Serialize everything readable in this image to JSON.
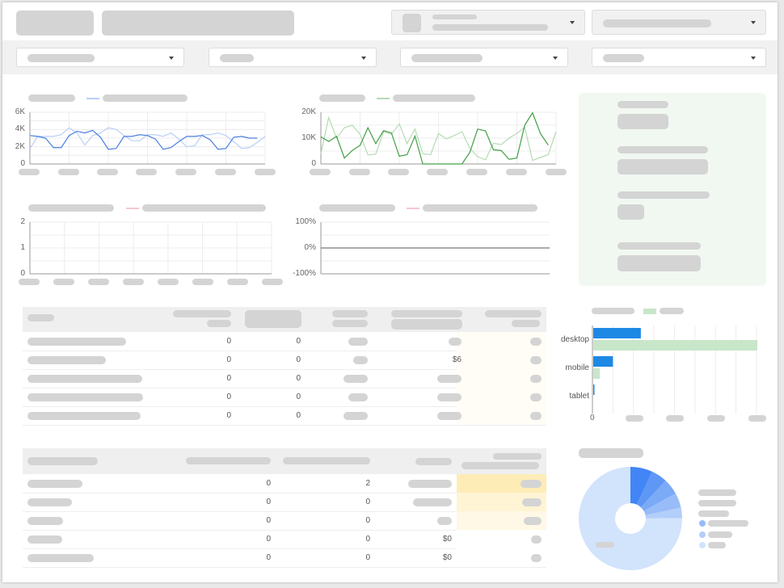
{
  "colors": {
    "blue_dark": "#4a7fe0",
    "blue_light": "#b9cff8",
    "green_dark": "#43a047",
    "green_light": "#b5dbb5",
    "pink": "#f6c7cf",
    "bar_blue": "#1e88e5",
    "bar_green": "#c8e6c9",
    "kpi_bg": "#f1f8f1",
    "heat": [
      "#feecb7",
      "#fff4d4",
      "#fff8e6"
    ]
  },
  "icons": {
    "dropdown": "chevron-down-icon"
  },
  "charts": [
    {
      "type": "line",
      "yticks": [
        "6K",
        "4K",
        "2K",
        "0"
      ],
      "ylim": [
        0,
        6000
      ],
      "series": [
        {
          "color": "blue_light",
          "values": [
            1800,
            3200,
            3200,
            3200,
            3400,
            4200,
            3600,
            2200,
            3300,
            3600,
            4200,
            4000,
            3300,
            2700,
            2700,
            3400,
            3400,
            3200,
            3600,
            2900,
            2000,
            2100,
            3400,
            3400,
            3600,
            3300,
            2600,
            1800,
            1900,
            2500,
            3200
          ]
        },
        {
          "color": "blue_dark",
          "values": [
            3300,
            3200,
            3000,
            1900,
            1900,
            3300,
            3800,
            3600,
            3900,
            3100,
            1700,
            1800,
            3200,
            3200,
            3400,
            3300,
            2900,
            1700,
            1900,
            2600,
            3200,
            3200,
            3300,
            2800,
            1700,
            1800,
            3100,
            3200,
            3000,
            3000
          ]
        }
      ]
    },
    {
      "type": "line",
      "yticks": [
        "20K",
        "10K",
        "0"
      ],
      "ylim": [
        0,
        20000
      ],
      "series": [
        {
          "color": "green_light",
          "values": [
            4000,
            18000,
            10000,
            14000,
            15000,
            11500,
            3500,
            3800,
            12500,
            11500,
            15500,
            7900,
            13500,
            4000,
            3600,
            11800,
            9700,
            11000,
            12500,
            6000,
            2800,
            1600,
            8000,
            7500,
            10000,
            11800,
            14200,
            1400,
            2500,
            3600,
            12500
          ]
        },
        {
          "color": "green_dark",
          "values": [
            10500,
            8700,
            10700,
            2300,
            5200,
            7200,
            14000,
            7900,
            12900,
            12000,
            3000,
            3600,
            10800,
            0,
            0,
            0,
            0,
            0,
            0,
            4500,
            13500,
            12800,
            5500,
            5200,
            1800,
            2300,
            15000,
            19800,
            11800,
            7300
          ]
        }
      ]
    },
    {
      "type": "line",
      "yticks": [
        "2",
        "1",
        "0"
      ],
      "ylim": [
        0,
        2
      ],
      "series": []
    },
    {
      "type": "line",
      "yticks": [
        "100%",
        "0%",
        "-100%"
      ],
      "ylim": [
        -100,
        100
      ],
      "series": [
        {
          "color": "grey",
          "values": [
            0,
            0
          ]
        }
      ]
    }
  ],
  "bar_chart": {
    "type": "bar",
    "orientation": "horizontal",
    "categories": [
      "desktop",
      "mobile",
      "tablet"
    ],
    "x_tick_first": "0",
    "series": [
      {
        "color": "bar_blue",
        "values": [
          0.29,
          0.12,
          0.005
        ]
      },
      {
        "color": "bar_green",
        "values": [
          1.0,
          0.04,
          0
        ]
      }
    ]
  },
  "pie_chart": {
    "type": "pie",
    "donut": true,
    "values": [
      6.9,
      5.0,
      5.0,
      4.7,
      3.3,
      75.1
    ],
    "colors": [
      "#4285f4",
      "#5e97f6",
      "#7baaf7",
      "#97bcf8",
      "#b3cefa",
      "#d2e3fc"
    ]
  },
  "table1": {
    "rows": [
      [
        "0",
        "0",
        "",
        "",
        ""
      ],
      [
        "0",
        "0",
        "",
        "$6",
        ""
      ],
      [
        "0",
        "0",
        "",
        "",
        ""
      ],
      [
        "0",
        "0",
        "",
        "",
        ""
      ],
      [
        "0",
        "0",
        "",
        "",
        ""
      ]
    ]
  },
  "table2": {
    "rows": [
      [
        "0",
        "2",
        "",
        ""
      ],
      [
        "0",
        "0",
        "",
        ""
      ],
      [
        "0",
        "0",
        "",
        ""
      ],
      [
        "0",
        "0",
        "$0",
        ""
      ],
      [
        "0",
        "0",
        "$0",
        ""
      ]
    ]
  }
}
